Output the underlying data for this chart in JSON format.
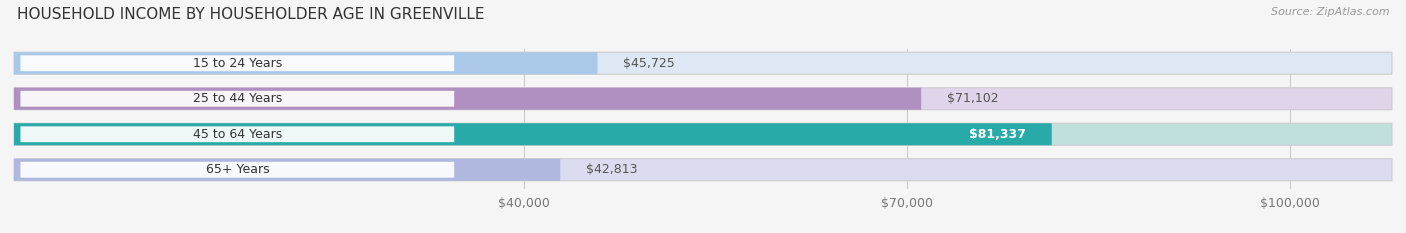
{
  "title": "HOUSEHOLD INCOME BY HOUSEHOLDER AGE IN GREENVILLE",
  "source": "Source: ZipAtlas.com",
  "categories": [
    "15 to 24 Years",
    "25 to 44 Years",
    "45 to 64 Years",
    "65+ Years"
  ],
  "values": [
    45725,
    71102,
    81337,
    42813
  ],
  "bar_colors": [
    "#aac8e8",
    "#b090c0",
    "#28aaa8",
    "#b0b8e0"
  ],
  "track_colors": [
    "#dde8f4",
    "#e0d4ea",
    "#c0e0de",
    "#dcdcf0"
  ],
  "value_labels": [
    "$45,725",
    "$71,102",
    "$81,337",
    "$42,813"
  ],
  "label_color_dark": "#555555",
  "label_color_light": "#ffffff",
  "label_inside": [
    false,
    false,
    true,
    false
  ],
  "x_min": 0,
  "x_max": 108000,
  "x_ticks": [
    40000,
    70000,
    100000
  ],
  "x_tick_labels": [
    "$40,000",
    "$70,000",
    "$100,000"
  ],
  "background_color": "#f5f5f5",
  "title_fontsize": 11,
  "source_fontsize": 8,
  "tick_fontsize": 9,
  "bar_height": 0.62,
  "bar_label_fontsize": 9,
  "cat_label_fontsize": 9
}
